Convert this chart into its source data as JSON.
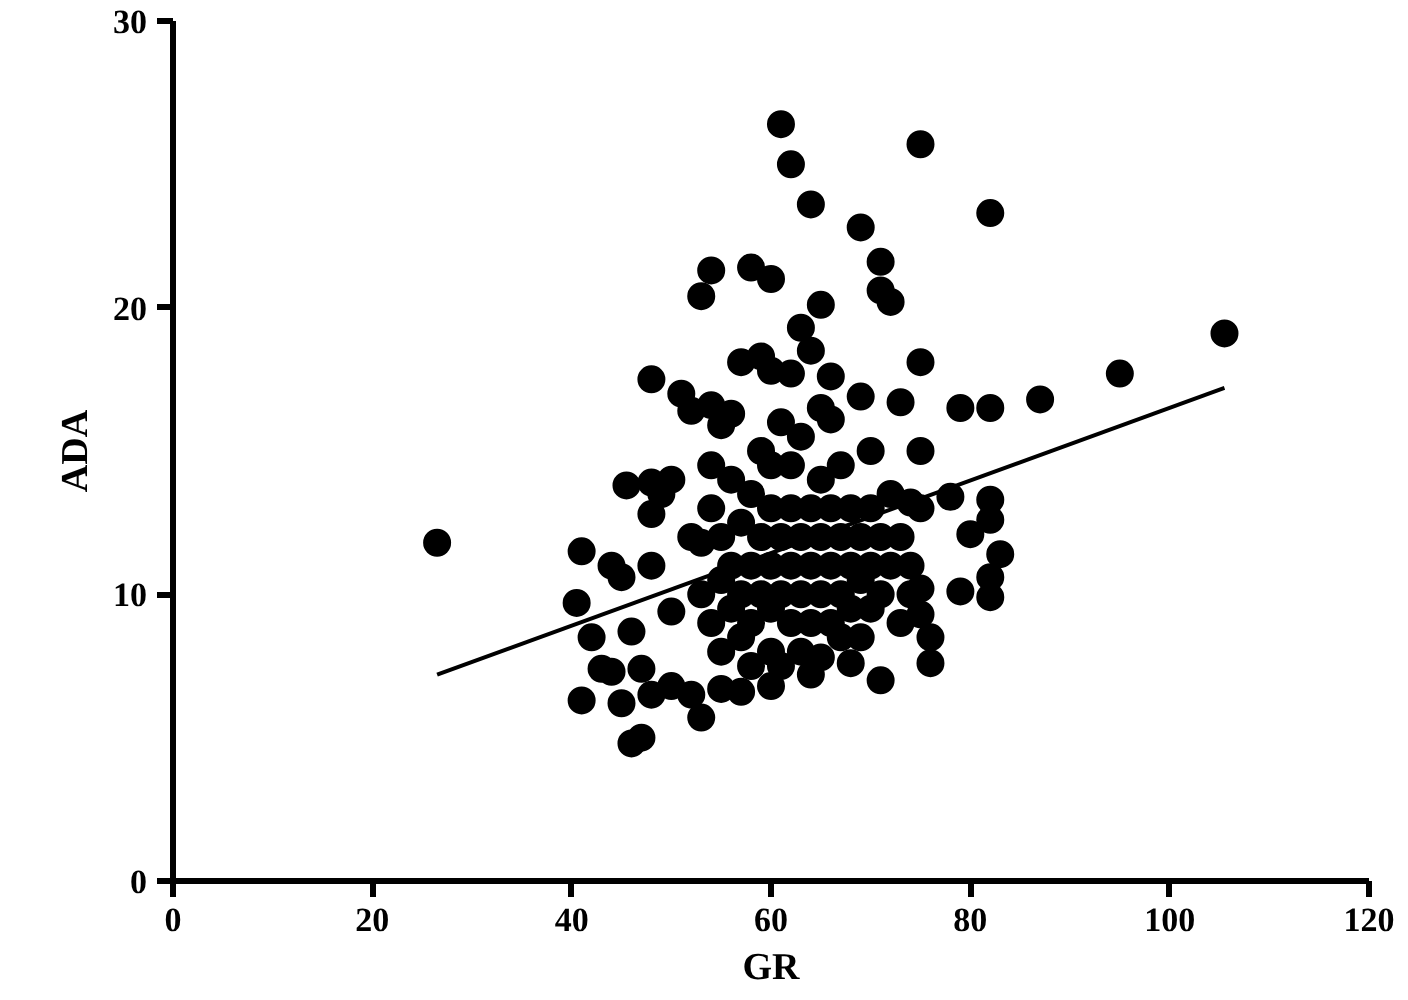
{
  "chart_data": {
    "type": "scatter",
    "xlabel": "GR",
    "ylabel": "ADA",
    "xlim": [
      0,
      120
    ],
    "ylim": [
      0,
      30
    ],
    "xticks": [
      0,
      20,
      40,
      60,
      80,
      100,
      120
    ],
    "yticks": [
      0,
      10,
      20,
      30
    ],
    "grid": false,
    "marker": "circle",
    "series": [
      {
        "color": "#000000",
        "x": [
          26.5,
          61,
          62,
          75,
          64,
          82,
          69,
          54,
          58,
          71,
          71,
          72,
          53,
          60,
          105.5,
          95,
          87,
          82,
          79,
          75,
          75,
          63,
          65,
          64,
          57,
          59,
          60,
          62,
          66,
          65,
          69,
          73,
          66,
          48,
          51,
          52,
          54,
          55,
          56,
          45.5,
          48,
          49,
          48,
          50,
          54,
          74,
          75,
          78,
          82,
          80,
          82,
          83,
          79,
          75,
          75,
          76,
          76,
          82,
          82,
          71,
          68,
          64,
          57,
          52,
          48,
          46,
          47,
          45,
          41,
          40.5,
          41,
          42,
          43,
          44,
          45,
          46,
          47,
          48,
          50,
          50,
          53,
          55,
          60,
          44,
          52,
          53,
          53,
          54,
          54,
          55,
          55,
          55,
          56,
          56,
          56,
          57,
          57,
          57,
          58,
          58,
          58,
          58,
          59,
          59,
          59,
          60,
          60,
          60,
          60,
          60,
          61,
          61,
          61,
          61,
          62,
          62,
          62,
          62,
          63,
          63,
          63,
          63,
          64,
          64,
          64,
          65,
          65,
          65,
          65,
          66,
          66,
          66,
          67,
          67,
          67,
          67,
          68,
          68,
          68,
          69,
          69,
          69,
          70,
          70,
          70,
          70,
          71,
          71,
          72,
          72,
          73,
          73,
          74,
          74
        ],
        "values": [
          11.8,
          26.4,
          25,
          25.7,
          23.6,
          23.3,
          22.8,
          21.3,
          21.4,
          21.6,
          20.6,
          20.2,
          20.4,
          21,
          19.1,
          17.7,
          16.8,
          16.5,
          16.5,
          18.1,
          15,
          19.3,
          20.1,
          18.5,
          18.1,
          18.3,
          17.8,
          17.7,
          17.6,
          16.5,
          16.9,
          16.7,
          16.1,
          17.5,
          17,
          16.4,
          16.6,
          15.9,
          16.3,
          13.8,
          13.9,
          13.5,
          12.8,
          14,
          14.5,
          13.2,
          13,
          13.4,
          13.3,
          12.1,
          12.6,
          11.4,
          10.1,
          10.2,
          9.3,
          8.5,
          7.6,
          9.9,
          10.6,
          7,
          7.6,
          7.2,
          6.6,
          6.5,
          6.5,
          4.8,
          5,
          6.2,
          6.3,
          9.7,
          11.5,
          8.5,
          7.4,
          11,
          10.6,
          8.7,
          7.4,
          11,
          9.4,
          6.8,
          5.7,
          6.7,
          6.8,
          7.3,
          12,
          10,
          11.8,
          9,
          13,
          8,
          10.5,
          12,
          9.5,
          11,
          14,
          8.5,
          10,
          12.5,
          7.5,
          9,
          11,
          13.5,
          10,
          12,
          15,
          8,
          9.5,
          11,
          13,
          14.5,
          7.5,
          10,
          12,
          16,
          9,
          11,
          13,
          14.5,
          8,
          10,
          12,
          15.5,
          9,
          11,
          13,
          7.8,
          10,
          12,
          14,
          9,
          11,
          13,
          8.5,
          10,
          12,
          14.5,
          9.5,
          11,
          13,
          8.5,
          10.5,
          12,
          9.5,
          11,
          13,
          15,
          10,
          12,
          11,
          13.5,
          9,
          12,
          11,
          10
        ]
      },
      {
        "type": "line",
        "color": "#000000",
        "x": [
          26.5,
          105.5
        ],
        "values": [
          7.2,
          17.2
        ],
        "marker": "none",
        "line_style": "solid"
      }
    ]
  }
}
